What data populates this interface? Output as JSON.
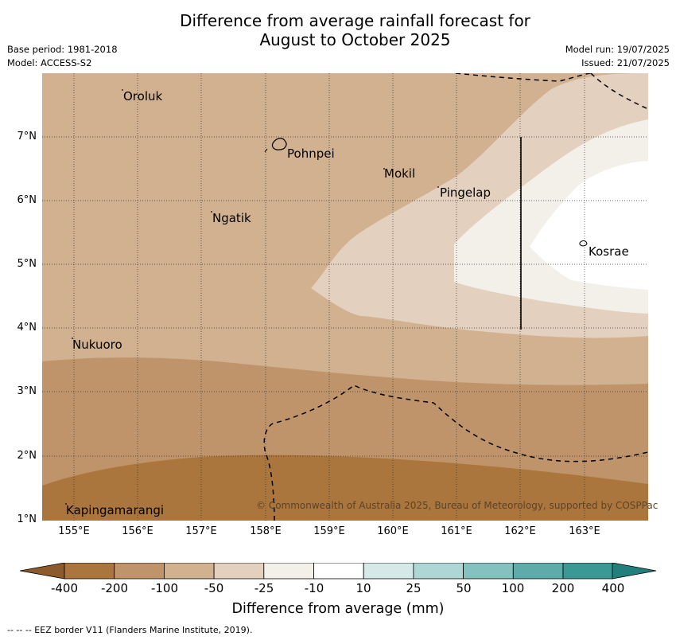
{
  "title_line1": "Difference from average rainfall forecast for",
  "title_line2": "August to October 2025",
  "base_period": "Base period: 1981-2018",
  "model": "Model: ACCESS-S2",
  "model_run": "Model run: 19/07/2025",
  "issued": "Issued: 21/07/2025",
  "y_axis_labels": [
    "7°N",
    "6°N",
    "5°N",
    "4°N",
    "3°N",
    "2°N",
    "1°N"
  ],
  "x_axis_labels": [
    "155°E",
    "156°E",
    "157°E",
    "158°E",
    "159°E",
    "160°E",
    "161°E",
    "162°E",
    "163°E"
  ],
  "places": [
    "Oroluk",
    "Pohnpei",
    "Mokil",
    "Pingelap",
    "Ngatik",
    "Kosrae",
    "Nukuoro",
    "Kapingamarangi"
  ],
  "copyright": "© Commonwealth of Australia 2025, Bureau of Meteorology, supported by COSPPac",
  "colorbar": {
    "labels": [
      "-400",
      "-200",
      "-100",
      "-50",
      "-25",
      "-10",
      "10",
      "25",
      "50",
      "100",
      "200",
      "400"
    ],
    "colors": [
      "#8c5a2b",
      "#ab763d",
      "#c0946b",
      "#d1b190",
      "#e3d0be",
      "#f3efe9",
      "#ffffff",
      "#d5eae8",
      "#aed6d4",
      "#84c2bf",
      "#5eacaa",
      "#3a9895",
      "#21807e"
    ],
    "title": "Difference from average (mm)"
  },
  "map_colors": {
    "-200_to_-100": "#ab763d",
    "-100_to_-50": "#c0946b",
    "-50_to_-25": "#d1b190",
    "-25_to_-10": "#e3d0be",
    "-10_to_10": "#f3efe9",
    "near_zero": "#ffffff"
  },
  "footnote": "--  --  -- EEZ border V11 (Flanders Marine Institute, 2019)."
}
